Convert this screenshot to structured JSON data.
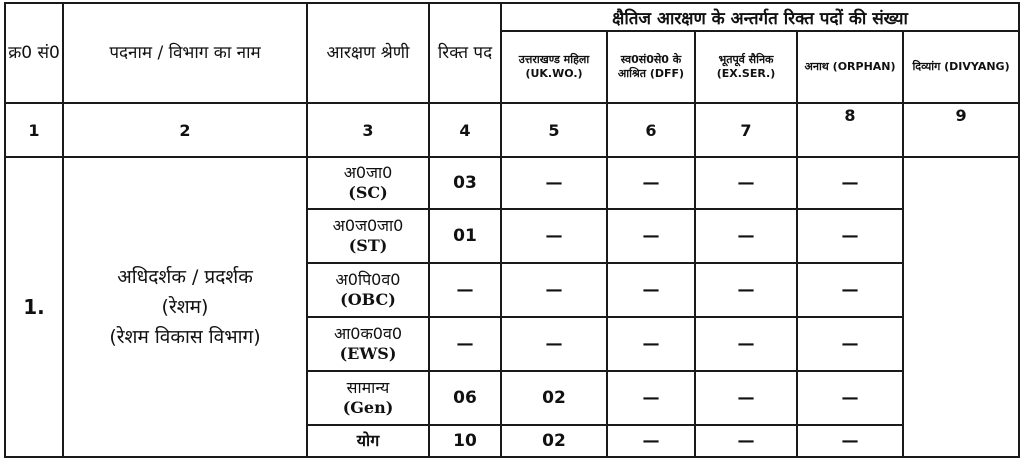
{
  "header": {
    "serial": "क्र0 सं0",
    "post": "पदनाम / विभाग का नाम",
    "category": "आरक्षण श्रेणी",
    "vacancies": "रिक्त पद",
    "horizontal_title": "क्षैतिज आरक्षण के अन्तर्गत रिक्त पदों की संख्या",
    "sub": [
      "उत्तराखण्ड महिला (UK.WO.)",
      "स्व0सं0से0 के आश्रित (DFF)",
      "भूतपूर्व सैनिक (EX.SER.)",
      "अनाथ (ORPHAN)",
      "दिव्यांग (DIVYANG)"
    ]
  },
  "col_numbers": [
    "1",
    "2",
    "3",
    "4",
    "5",
    "6",
    "7",
    "8",
    "9"
  ],
  "body": {
    "serial": "1.",
    "post_line1": "अधिदर्शक / प्रदर्शक",
    "post_line2": "(रेशम)",
    "post_line3": "(रेशम विकास विभाग)"
  },
  "rows": [
    {
      "cat_hi": "अ0जा0",
      "cat_en": "(SC)",
      "vac": "03",
      "ukwo": "—",
      "dff": "—",
      "exser": "—",
      "orphan": "—"
    },
    {
      "cat_hi": "अ0ज0जा0",
      "cat_en": "(ST)",
      "vac": "01",
      "ukwo": "—",
      "dff": "—",
      "exser": "—",
      "orphan": "—"
    },
    {
      "cat_hi": "अ0पि0व0",
      "cat_en": "(OBC)",
      "vac": "—",
      "ukwo": "—",
      "dff": "—",
      "exser": "—",
      "orphan": "—"
    },
    {
      "cat_hi": "आ0क0व0",
      "cat_en": "(EWS)",
      "vac": "—",
      "ukwo": "—",
      "dff": "—",
      "exser": "—",
      "orphan": "—"
    },
    {
      "cat_hi": "सामान्य",
      "cat_en": "(Gen)",
      "vac": "06",
      "ukwo": "02",
      "dff": "—",
      "exser": "—",
      "orphan": "—"
    }
  ],
  "total": {
    "label": "योग",
    "vac": "10",
    "ukwo": "02",
    "dff": "—",
    "exser": "—",
    "orphan": "—"
  }
}
